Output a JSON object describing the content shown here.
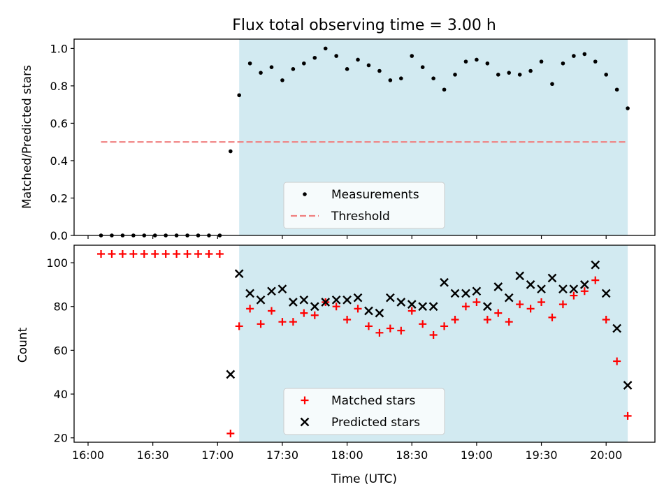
{
  "chart_data": [
    {
      "type": "scatter",
      "title": "Flux total observing time = 3.00 h",
      "xlabel": "",
      "ylabel": "Matched/Predicted stars",
      "ylim": [
        0,
        1.05
      ],
      "yticks": [
        "0.0",
        "0.2",
        "0.4",
        "0.6",
        "0.8",
        "1.0"
      ],
      "y_tick_values": [
        0,
        0.2,
        0.4,
        0.6,
        0.8,
        1.0
      ],
      "x_tick_minutes": [
        960,
        990,
        1020,
        1050,
        1080,
        1110,
        1140,
        1170,
        1200
      ],
      "shaded_interval_minutes": [
        1030,
        1210
      ],
      "shade_color": "#add8e6",
      "threshold": {
        "name": "Threshold",
        "value": 0.5,
        "x_start": 966,
        "x_end": 1210,
        "color": "#f08080"
      },
      "series": [
        {
          "name": "Measurements",
          "color": "#000000",
          "x": [
            966,
            971,
            976,
            981,
            986,
            991,
            996,
            1001,
            1006,
            1011,
            1016,
            1021,
            1026,
            1030,
            1035,
            1040,
            1045,
            1050,
            1055,
            1060,
            1065,
            1070,
            1075,
            1080,
            1085,
            1090,
            1095,
            1100,
            1105,
            1110,
            1115,
            1120,
            1125,
            1130,
            1135,
            1140,
            1145,
            1150,
            1155,
            1160,
            1165,
            1170,
            1175,
            1180,
            1185,
            1190,
            1195,
            1200,
            1205,
            1210
          ],
          "y": [
            0,
            0,
            0,
            0,
            0,
            0,
            0,
            0,
            0,
            0,
            0,
            0,
            0.45,
            0.75,
            0.92,
            0.87,
            0.9,
            0.83,
            0.89,
            0.92,
            0.95,
            1.0,
            0.96,
            0.89,
            0.94,
            0.91,
            0.88,
            0.83,
            0.84,
            0.96,
            0.9,
            0.84,
            0.78,
            0.86,
            0.93,
            0.94,
            0.92,
            0.86,
            0.87,
            0.86,
            0.88,
            0.93,
            0.81,
            0.92,
            0.96,
            0.97,
            0.93,
            0.86,
            0.78,
            0.68
          ]
        }
      ],
      "legend": {
        "position": "lower center",
        "entries": [
          "Measurements",
          "Threshold"
        ]
      }
    },
    {
      "type": "scatter",
      "title": "",
      "xlabel": "Time (UTC)",
      "ylabel": "Count",
      "ylim": [
        18,
        108
      ],
      "yticks": [
        "20",
        "40",
        "60",
        "80",
        "100"
      ],
      "y_tick_values": [
        20,
        40,
        60,
        80,
        100
      ],
      "xticks": [
        "16:00",
        "16:30",
        "17:00",
        "17:30",
        "18:00",
        "18:30",
        "19:00",
        "19:30",
        "20:00"
      ],
      "x_tick_minutes": [
        960,
        990,
        1020,
        1050,
        1080,
        1110,
        1140,
        1170,
        1200
      ],
      "shaded_interval_minutes": [
        1030,
        1210
      ],
      "shade_color": "#add8e6",
      "series": [
        {
          "name": "Matched stars",
          "marker": "plus",
          "color": "#ff0000",
          "x": [
            966,
            971,
            976,
            981,
            986,
            991,
            996,
            1001,
            1006,
            1011,
            1016,
            1021,
            1026,
            1030,
            1035,
            1040,
            1045,
            1050,
            1055,
            1060,
            1065,
            1070,
            1075,
            1080,
            1085,
            1090,
            1095,
            1100,
            1105,
            1110,
            1115,
            1120,
            1125,
            1130,
            1135,
            1140,
            1145,
            1150,
            1155,
            1160,
            1165,
            1170,
            1175,
            1180,
            1185,
            1190,
            1195,
            1200,
            1205,
            1210
          ],
          "y": [
            104,
            104,
            104,
            104,
            104,
            104,
            104,
            104,
            104,
            104,
            104,
            104,
            22,
            71,
            79,
            72,
            78,
            73,
            73,
            77,
            76,
            82,
            80,
            74,
            79,
            71,
            68,
            70,
            69,
            78,
            72,
            67,
            71,
            74,
            80,
            82,
            74,
            77,
            73,
            81,
            79,
            82,
            75,
            81,
            85,
            87,
            92,
            74,
            55,
            30
          ]
        },
        {
          "name": "Predicted stars",
          "marker": "x",
          "color": "#000000",
          "x": [
            1026,
            1030,
            1035,
            1040,
            1045,
            1050,
            1055,
            1060,
            1065,
            1070,
            1075,
            1080,
            1085,
            1090,
            1095,
            1100,
            1105,
            1110,
            1115,
            1120,
            1125,
            1130,
            1135,
            1140,
            1145,
            1150,
            1155,
            1160,
            1165,
            1170,
            1175,
            1180,
            1185,
            1190,
            1195,
            1200,
            1205,
            1210
          ],
          "y": [
            49,
            95,
            86,
            83,
            87,
            88,
            82,
            83,
            80,
            82,
            83,
            83,
            84,
            78,
            77,
            84,
            82,
            81,
            80,
            80,
            91,
            86,
            86,
            87,
            80,
            89,
            84,
            94,
            90,
            88,
            93,
            88,
            88,
            90,
            99,
            86,
            70,
            44
          ]
        }
      ],
      "legend": {
        "position": "lower center",
        "entries": [
          "Matched stars",
          "Predicted stars"
        ]
      }
    }
  ]
}
